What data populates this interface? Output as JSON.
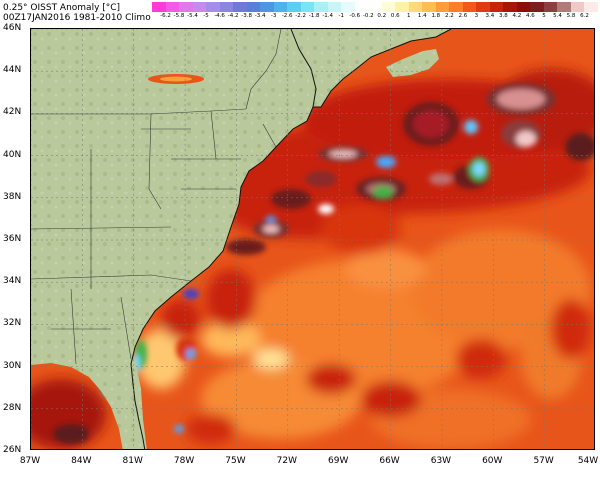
{
  "header": {
    "title_line1": "0.25° OISST Anomaly [°C]",
    "title_line2": "00Z17JAN2016  1981-2010 Climo"
  },
  "colorbar": {
    "labels": [
      "-6.2",
      "-5.8",
      "-5.4",
      "-5",
      "-4.6",
      "-4.2",
      "-3.8",
      "-3.4",
      "-3",
      "-2.6",
      "-2.2",
      "-1.8",
      "-1.4",
      "-1",
      "-0.6",
      "-0.2",
      "0.2",
      "0.6",
      "1",
      "1.4",
      "1.8",
      "2.2",
      "2.6",
      "3",
      "3.4",
      "3.8",
      "4.2",
      "4.6",
      "5",
      "5.4",
      "5.8",
      "6.2"
    ],
    "colors": [
      "#ff3ad7",
      "#f45ae3",
      "#e07ae6",
      "#c78cea",
      "#a58ee8",
      "#8a86e0",
      "#6e7ad6",
      "#5a7fd8",
      "#4f95e2",
      "#4fb3ea",
      "#5ccff0",
      "#7ae4f4",
      "#a8f0f6",
      "#c8f5f8",
      "#e6fbfc",
      "#ffffff",
      "#ffffff",
      "#fffdd4",
      "#fff1a8",
      "#ffd97a",
      "#ffbe55",
      "#ff9d3c",
      "#ff7c2a",
      "#f6581c",
      "#e23a12",
      "#c9230c",
      "#a81608",
      "#8a1006",
      "#7a1e1e",
      "#8a4040",
      "#b27a7a",
      "#f0c8c8",
      "#ffeaea"
    ]
  },
  "map": {
    "latitudes": [
      {
        "label": "46N",
        "value": 46
      },
      {
        "label": "44N",
        "value": 44
      },
      {
        "label": "42N",
        "value": 42
      },
      {
        "label": "40N",
        "value": 40
      },
      {
        "label": "38N",
        "value": 38
      },
      {
        "label": "36N",
        "value": 36
      },
      {
        "label": "34N",
        "value": 34
      },
      {
        "label": "32N",
        "value": 32
      },
      {
        "label": "30N",
        "value": 30
      },
      {
        "label": "28N",
        "value": 28
      },
      {
        "label": "26N",
        "value": 26
      }
    ],
    "longitudes": [
      {
        "label": "87W",
        "value": -87
      },
      {
        "label": "84W",
        "value": -84
      },
      {
        "label": "81W",
        "value": -81
      },
      {
        "label": "78W",
        "value": -78
      },
      {
        "label": "75W",
        "value": -75
      },
      {
        "label": "72W",
        "value": -72
      },
      {
        "label": "69W",
        "value": -69
      },
      {
        "label": "66W",
        "value": -66
      },
      {
        "label": "63W",
        "value": -63
      },
      {
        "label": "60W",
        "value": -60
      },
      {
        "label": "57W",
        "value": -57
      },
      {
        "label": "54W",
        "value": -54
      }
    ],
    "land_color": "#b7c79a",
    "ocean_base_color": "#e24a12"
  }
}
